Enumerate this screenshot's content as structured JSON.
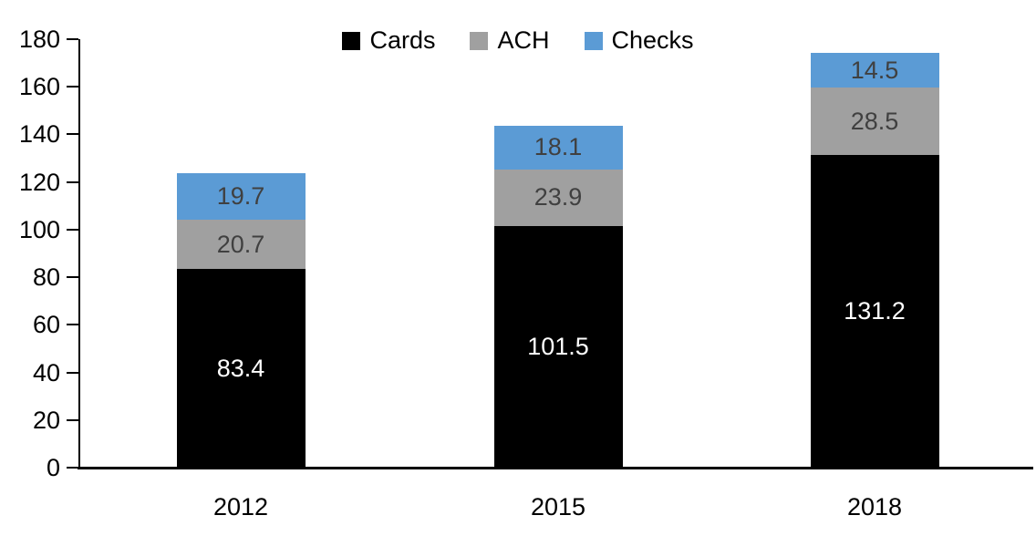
{
  "chart_data": {
    "type": "bar",
    "stacked": true,
    "categories": [
      "2012",
      "2015",
      "2018"
    ],
    "series": [
      {
        "name": "Cards",
        "values": [
          83.4,
          101.5,
          131.2
        ],
        "color": "#000000",
        "label_color": "#ffffff"
      },
      {
        "name": "ACH",
        "values": [
          20.7,
          23.9,
          28.5
        ],
        "color": "#a0a0a0",
        "label_color": "#404040"
      },
      {
        "name": "Checks",
        "values": [
          19.7,
          18.1,
          14.5
        ],
        "color": "#5b9bd5",
        "label_color": "#404040"
      }
    ],
    "totals": [
      123.8,
      143.5,
      174.2
    ],
    "ylim": [
      0,
      180
    ],
    "y_tick_step": 20,
    "y_tick_labels": [
      "0",
      "20",
      "40",
      "60",
      "80",
      "100",
      "120",
      "140",
      "160",
      "180"
    ],
    "grid": false,
    "legend_position": "top-center",
    "axis_color": "#000000",
    "background": "#ffffff",
    "value_label_decimals": 1
  }
}
